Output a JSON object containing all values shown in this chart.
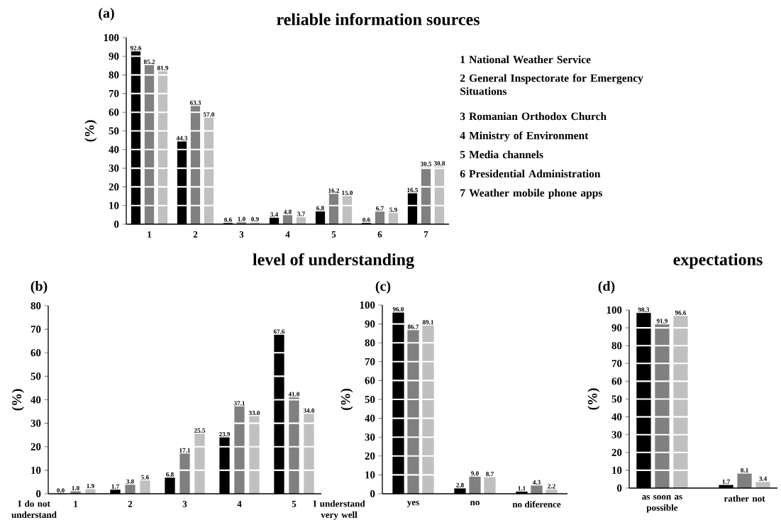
{
  "chart_data": [
    {
      "type": "bar",
      "title": "reliable information sources",
      "ylabel": "(%)",
      "categories": [
        "1",
        "2",
        "3",
        "4",
        "5",
        "6",
        "7"
      ],
      "series": [
        {
          "color": "#000000",
          "values": [
            92.6,
            44.3,
            0.6,
            3.4,
            6.8,
            0.6,
            16.5
          ],
          "value_labels": [
            "92.6",
            "44.3",
            "0.6",
            "3.4",
            "6.8",
            "0.6",
            "16.5"
          ]
        },
        {
          "color": "#808080",
          "values": [
            85.2,
            63.3,
            1.0,
            4.8,
            16.2,
            6.7,
            30.5
          ],
          "value_labels": [
            "85.2",
            "63.3",
            "1.0",
            "4.8",
            "16.2",
            "6.7",
            "30.5"
          ]
        },
        {
          "color": "#c0c0c0",
          "values": [
            81.9,
            57.0,
            0.9,
            3.7,
            15.0,
            5.9,
            30.8
          ],
          "value_labels": [
            "81.9",
            "57.0",
            "0.9",
            "3.7",
            "15.0",
            "5.9",
            "30.8"
          ]
        }
      ],
      "ylim": [
        0,
        100
      ],
      "yticks": [
        0,
        10,
        20,
        30,
        40,
        50,
        60,
        70,
        80,
        90,
        100
      ],
      "grid": "y",
      "annotations": [
        "(a)",
        "1 National Weather Service",
        "2 General Inspectorate for Emergency Situations",
        "3 Romanian Orthodox Church",
        "4 Ministry of Environment",
        "5 Media channels",
        "6 Presidential Administration",
        "7 Weather mobile phone apps"
      ]
    },
    {
      "type": "bar",
      "title": "level of understanding",
      "ylabel": "(%)",
      "categories": [
        "1",
        "2",
        "3",
        "4",
        "5"
      ],
      "series": [
        {
          "color": "#000000",
          "values": [
            0.0,
            1.7,
            6.8,
            23.9,
            67.6
          ],
          "value_labels": [
            "0.0",
            "1.7",
            "6.8",
            "23.9",
            "67.6"
          ]
        },
        {
          "color": "#808080",
          "values": [
            1.0,
            3.8,
            17.1,
            37.1,
            41.0
          ],
          "value_labels": [
            "1.0",
            "3.8",
            "17.1",
            "37.1",
            "41.0"
          ]
        },
        {
          "color": "#c0c0c0",
          "values": [
            1.9,
            5.6,
            25.5,
            33.0,
            34.0
          ],
          "value_labels": [
            "1.9",
            "5.6",
            "25.5",
            "33.0",
            "34.0"
          ]
        }
      ],
      "ylim": [
        0,
        80
      ],
      "yticks": [
        0,
        10,
        20,
        30,
        40,
        50,
        60,
        70,
        80
      ],
      "grid": "y",
      "annotations": [
        "(b)",
        "I do not understand",
        "I understand very well"
      ]
    },
    {
      "type": "bar",
      "ylabel": "(%)",
      "categories": [
        "yes",
        "no",
        "no diference"
      ],
      "series": [
        {
          "color": "#000000",
          "values": [
            96.0,
            2.8,
            1.1
          ],
          "value_labels": [
            "96.0",
            "2.8",
            "1.1"
          ]
        },
        {
          "color": "#808080",
          "values": [
            86.7,
            9.0,
            4.3
          ],
          "value_labels": [
            "86.7",
            "9.0",
            "4.3"
          ]
        },
        {
          "color": "#c0c0c0",
          "values": [
            89.1,
            8.7,
            2.2
          ],
          "value_labels": [
            "89.1",
            "8.7",
            "2.2"
          ]
        }
      ],
      "ylim": [
        0,
        100
      ],
      "yticks": [
        0,
        10,
        20,
        30,
        40,
        50,
        60,
        70,
        80,
        90,
        100
      ],
      "grid": "y",
      "annotations": [
        "(c)"
      ]
    },
    {
      "type": "bar",
      "title": "expectations",
      "ylabel": "(%)",
      "categories": [
        "as soon as possible",
        "rather not"
      ],
      "series": [
        {
          "color": "#000000",
          "values": [
            98.3,
            1.7
          ],
          "value_labels": [
            "98.3",
            "1.7"
          ]
        },
        {
          "color": "#808080",
          "values": [
            91.9,
            8.1
          ],
          "value_labels": [
            "91.9",
            "8.1"
          ]
        },
        {
          "color": "#c0c0c0",
          "values": [
            96.6,
            3.4
          ],
          "value_labels": [
            "96.6",
            "3.4"
          ]
        }
      ],
      "ylim": [
        0,
        100
      ],
      "yticks": [
        0,
        10,
        20,
        30,
        40,
        50,
        60,
        70,
        80,
        90,
        100
      ],
      "grid": "y",
      "annotations": [
        "(d)"
      ]
    }
  ]
}
